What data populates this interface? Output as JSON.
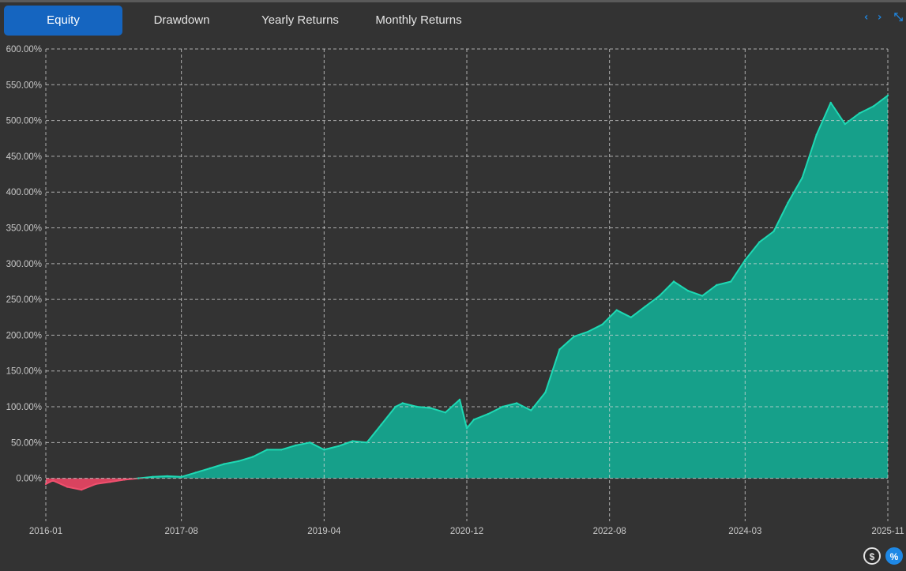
{
  "tabs": [
    {
      "label": "Equity",
      "active": true
    },
    {
      "label": "Drawdown",
      "active": false
    },
    {
      "label": "Yearly Returns",
      "active": false
    },
    {
      "label": "Monthly Returns",
      "active": false
    }
  ],
  "top_icons": {
    "code": "‹ ›",
    "collapse": "⤡"
  },
  "bottom_buttons": {
    "dollar": "$",
    "percent": "%"
  },
  "colors": {
    "background": "#333333",
    "positive_line": "#1ed9b4",
    "positive_fill": "#16a08a",
    "negative_line": "#f0506e",
    "negative_fill": "#d9435f",
    "grid": "#d8d8d8",
    "tick_text": "#c8c8c8",
    "tab_active": "#1565c0"
  },
  "chart_data": {
    "type": "area",
    "grid": true,
    "y_ticks": [
      "600.00%",
      "550.00%",
      "500.00%",
      "450.00%",
      "400.00%",
      "350.00%",
      "300.00%",
      "250.00%",
      "200.00%",
      "150.00%",
      "100.00%",
      "50.00%",
      "0.00%"
    ],
    "ylim": [
      -60,
      600
    ],
    "x_ticks": [
      "2016-01",
      "2017-08",
      "2019-04",
      "2020-12",
      "2022-08",
      "2024-03",
      "2025-11"
    ],
    "xlim": [
      "2016-01",
      "2025-11"
    ],
    "series": [
      {
        "x": [
          "2016-01",
          "2016-02",
          "2016-04",
          "2016-06",
          "2016-08",
          "2016-10",
          "2016-12",
          "2017-02",
          "2017-04",
          "2017-06",
          "2017-08",
          "2017-10",
          "2017-12",
          "2018-02",
          "2018-04",
          "2018-06",
          "2018-08",
          "2018-10",
          "2018-12",
          "2019-02",
          "2019-04",
          "2019-06",
          "2019-08",
          "2019-10",
          "2019-12",
          "2020-02",
          "2020-03",
          "2020-05",
          "2020-07",
          "2020-09",
          "2020-11",
          "2020-12",
          "2021-01",
          "2021-03",
          "2021-05",
          "2021-07",
          "2021-09",
          "2021-11",
          "2022-01",
          "2022-03",
          "2022-05",
          "2022-07",
          "2022-09",
          "2022-11",
          "2023-01",
          "2023-03",
          "2023-05",
          "2023-07",
          "2023-09",
          "2023-11",
          "2024-01",
          "2024-03",
          "2024-05",
          "2024-07",
          "2024-09",
          "2024-11",
          "2025-01",
          "2025-03",
          "2025-05",
          "2025-07",
          "2025-09",
          "2025-11"
        ],
        "y": [
          -8,
          -3,
          -12,
          -16,
          -8,
          -5,
          -2,
          0,
          2,
          3,
          2,
          8,
          14,
          20,
          24,
          30,
          40,
          40,
          46,
          50,
          40,
          45,
          52,
          50,
          75,
          100,
          105,
          100,
          98,
          92,
          110,
          70,
          82,
          90,
          100,
          105,
          95,
          120,
          180,
          198,
          205,
          215,
          235,
          225,
          240,
          255,
          275,
          262,
          255,
          270,
          275,
          305,
          330,
          345,
          385,
          420,
          480,
          525,
          495,
          510,
          520,
          535
        ]
      }
    ]
  }
}
